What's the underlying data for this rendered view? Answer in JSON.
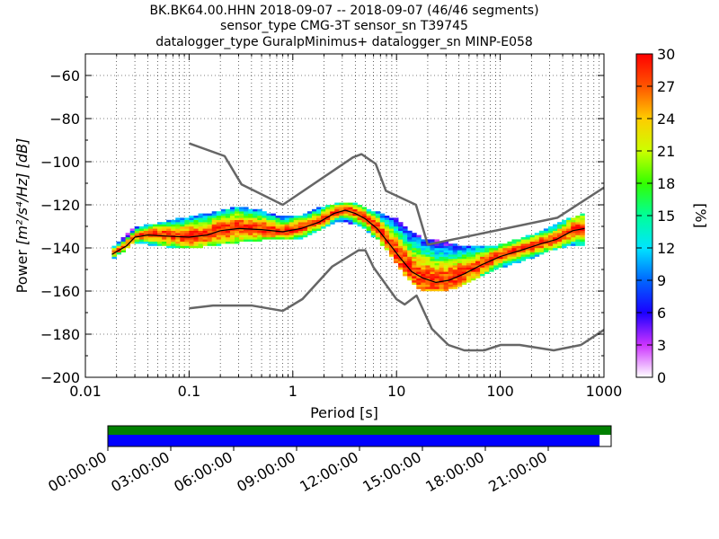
{
  "header": {
    "title_lines": [
      "BK.BK64.00.HHN   2018-09-07 -- 2018-09-07  (46/46 segments)",
      "sensor_type CMG-3T sensor_sn T39745",
      "datalogger_type GuralpMinimus+ datalogger_sn MINP-E058"
    ]
  },
  "chart_data": {
    "type": "heatmap",
    "xlabel": "Period [s]",
    "ylabel_prefix": "Power ",
    "ylabel_math": "[m²/s⁴/Hz] [dB]",
    "xscale": "log",
    "xlim": [
      0.01,
      1000
    ],
    "ylim": [
      -200,
      -50
    ],
    "x_ticks": [
      0.01,
      0.1,
      1,
      10,
      100,
      1000
    ],
    "x_tick_labels": [
      "0.01",
      "0.1",
      "1",
      "10",
      "100",
      "1000"
    ],
    "y_ticks": [
      -200,
      -180,
      -160,
      -140,
      -120,
      -100,
      -80,
      -60
    ],
    "y_tick_labels": [
      "−200",
      "−180",
      "−160",
      "−140",
      "−120",
      "−100",
      "−80",
      "−60"
    ],
    "grid": true,
    "colorbar": {
      "label": "[%]",
      "range": [
        0,
        30
      ],
      "ticks": [
        0,
        3,
        6,
        9,
        12,
        15,
        18,
        21,
        24,
        27,
        30
      ],
      "tick_labels": [
        "0",
        "3",
        "6",
        "9",
        "12",
        "15",
        "18",
        "21",
        "24",
        "27",
        "30"
      ]
    },
    "noise_model_high": [
      [
        0.1,
        -91.5
      ],
      [
        0.22,
        -97.4
      ],
      [
        0.32,
        -110.5
      ],
      [
        0.8,
        -120.0
      ],
      [
        3.8,
        -98.0
      ],
      [
        4.6,
        -96.5
      ],
      [
        6.3,
        -101.0
      ],
      [
        7.9,
        -113.5
      ],
      [
        15.4,
        -120.0
      ],
      [
        20.0,
        -138.5
      ],
      [
        354.8,
        -126.0
      ],
      [
        1000,
        -112.0
      ]
    ],
    "noise_model_low": [
      [
        0.1,
        -168.0
      ],
      [
        0.17,
        -166.7
      ],
      [
        0.4,
        -166.7
      ],
      [
        0.8,
        -169.2
      ],
      [
        1.24,
        -163.7
      ],
      [
        2.4,
        -148.6
      ],
      [
        4.3,
        -141.1
      ],
      [
        5.0,
        -141.1
      ],
      [
        6.0,
        -149.0
      ],
      [
        10.0,
        -163.8
      ],
      [
        12.0,
        -166.2
      ],
      [
        15.6,
        -162.1
      ],
      [
        21.9,
        -177.5
      ],
      [
        31.6,
        -185.0
      ],
      [
        45.0,
        -187.5
      ],
      [
        70.0,
        -187.5
      ],
      [
        101.0,
        -185.0
      ],
      [
        154.0,
        -185.0
      ],
      [
        328.0,
        -187.5
      ],
      [
        600.0,
        -185.0
      ],
      [
        1000.0,
        -178.0
      ]
    ],
    "median_curve": [
      [
        0.018,
        -143
      ],
      [
        0.025,
        -139
      ],
      [
        0.03,
        -135
      ],
      [
        0.04,
        -134
      ],
      [
        0.06,
        -134.5
      ],
      [
        0.1,
        -135
      ],
      [
        0.15,
        -134
      ],
      [
        0.2,
        -132
      ],
      [
        0.3,
        -131
      ],
      [
        0.5,
        -131.5
      ],
      [
        0.8,
        -132.5
      ],
      [
        1.2,
        -131
      ],
      [
        1.8,
        -128
      ],
      [
        2.5,
        -124
      ],
      [
        3.2,
        -122.5
      ],
      [
        4.0,
        -124
      ],
      [
        5.0,
        -126.5
      ],
      [
        6.5,
        -131
      ],
      [
        8.5,
        -138
      ],
      [
        11,
        -145
      ],
      [
        14,
        -151
      ],
      [
        18,
        -154
      ],
      [
        24,
        -156
      ],
      [
        32,
        -155
      ],
      [
        45,
        -152
      ],
      [
        65,
        -148
      ],
      [
        100,
        -144
      ],
      [
        160,
        -141
      ],
      [
        250,
        -138
      ],
      [
        350,
        -136
      ],
      [
        500,
        -132
      ],
      [
        650,
        -131
      ]
    ],
    "data_band": [
      [
        0.018,
        -145,
        -141
      ],
      [
        0.03,
        -137,
        -132
      ],
      [
        0.06,
        -139,
        -129
      ],
      [
        0.1,
        -140,
        -127
      ],
      [
        0.2,
        -138,
        -124
      ],
      [
        0.3,
        -137,
        -122
      ],
      [
        0.5,
        -136,
        -124
      ],
      [
        0.8,
        -136,
        -127
      ],
      [
        1.2,
        -135,
        -126
      ],
      [
        2.0,
        -130,
        -122
      ],
      [
        3.0,
        -127,
        -120
      ],
      [
        4.0,
        -129,
        -121
      ],
      [
        5.0,
        -131,
        -123
      ],
      [
        7.0,
        -137,
        -125
      ],
      [
        10,
        -147,
        -128
      ],
      [
        14,
        -156,
        -134
      ],
      [
        18,
        -160,
        -137
      ],
      [
        25,
        -160,
        -138
      ],
      [
        40,
        -158,
        -140
      ],
      [
        60,
        -154,
        -141
      ],
      [
        100,
        -149,
        -140
      ],
      [
        180,
        -145,
        -136
      ],
      [
        300,
        -141,
        -132
      ],
      [
        450,
        -139,
        -128
      ],
      [
        650,
        -138,
        -125
      ]
    ]
  },
  "time_axis": {
    "labels": [
      "00:00:00",
      "03:00:00",
      "06:00:00",
      "09:00:00",
      "12:00:00",
      "15:00:00",
      "18:00:00",
      "21:00:00"
    ],
    "top_bar_color": "#008000",
    "bottom_bar_color": "#0000ff",
    "coverage_fraction": 0.977
  }
}
